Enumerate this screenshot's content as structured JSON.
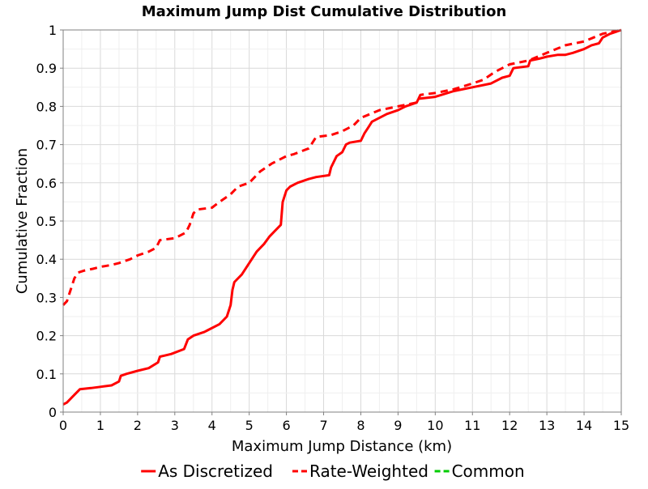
{
  "chart_data": {
    "type": "line",
    "title": "Maximum Jump Dist Cumulative Distribution",
    "xlabel": "Maximum Jump Distance (km)",
    "ylabel": "Cumulative Fraction",
    "xlim": [
      0,
      15
    ],
    "ylim": [
      0,
      1
    ],
    "x_ticks": [
      "0",
      "1",
      "2",
      "3",
      "4",
      "5",
      "6",
      "7",
      "8",
      "9",
      "10",
      "11",
      "12",
      "13",
      "14",
      "15"
    ],
    "y_ticks": [
      "0",
      "0.1",
      "0.2",
      "0.3",
      "0.4",
      "0.5",
      "0.6",
      "0.7",
      "0.8",
      "0.9",
      "1"
    ],
    "grid": true,
    "legend_position": "bottom",
    "series": [
      {
        "name": "As Discretized",
        "color": "#ff0000",
        "style": "solid",
        "x": [
          0,
          0.1,
          0.25,
          0.45,
          0.75,
          1.0,
          1.3,
          1.5,
          1.55,
          1.7,
          2.0,
          2.3,
          2.55,
          2.6,
          2.9,
          3.25,
          3.35,
          3.5,
          3.8,
          4.2,
          4.4,
          4.5,
          4.55,
          4.6,
          4.8,
          5.0,
          5.2,
          5.4,
          5.55,
          5.65,
          5.85,
          5.9,
          6.0,
          6.1,
          6.3,
          6.6,
          6.8,
          7.15,
          7.2,
          7.35,
          7.5,
          7.6,
          7.7,
          8.0,
          8.1,
          8.2,
          8.3,
          8.5,
          8.7,
          9.0,
          9.2,
          9.5,
          9.55,
          10.0,
          10.5,
          11.0,
          11.5,
          11.8,
          12.0,
          12.1,
          12.5,
          12.55,
          12.8,
          13.0,
          13.3,
          13.5,
          13.7,
          14.0,
          14.2,
          14.4,
          14.5,
          14.7,
          15.0
        ],
        "y": [
          0.02,
          0.025,
          0.04,
          0.06,
          0.063,
          0.066,
          0.07,
          0.08,
          0.095,
          0.1,
          0.108,
          0.115,
          0.13,
          0.145,
          0.152,
          0.165,
          0.19,
          0.2,
          0.21,
          0.23,
          0.25,
          0.28,
          0.32,
          0.34,
          0.36,
          0.39,
          0.42,
          0.44,
          0.46,
          0.47,
          0.49,
          0.55,
          0.58,
          0.59,
          0.6,
          0.61,
          0.615,
          0.62,
          0.64,
          0.67,
          0.68,
          0.7,
          0.705,
          0.71,
          0.73,
          0.745,
          0.76,
          0.77,
          0.78,
          0.79,
          0.8,
          0.81,
          0.82,
          0.825,
          0.84,
          0.85,
          0.86,
          0.875,
          0.88,
          0.9,
          0.905,
          0.92,
          0.925,
          0.93,
          0.935,
          0.935,
          0.94,
          0.95,
          0.96,
          0.965,
          0.98,
          0.99,
          1.0
        ]
      },
      {
        "name": "Rate-Weighted",
        "color": "#ff0000",
        "style": "dashed",
        "x": [
          0,
          0.1,
          0.2,
          0.3,
          0.4,
          0.55,
          0.8,
          1.0,
          1.3,
          1.5,
          1.8,
          2.0,
          2.3,
          2.5,
          2.6,
          3.0,
          3.3,
          3.4,
          3.5,
          3.6,
          4.0,
          4.2,
          4.5,
          4.7,
          5.0,
          5.3,
          5.6,
          5.8,
          6.0,
          6.2,
          6.6,
          6.8,
          7.2,
          7.5,
          7.8,
          8.0,
          8.5,
          9.0,
          9.5,
          9.6,
          10.0,
          10.5,
          11.0,
          11.3,
          11.6,
          12.0,
          12.5,
          13.0,
          13.5,
          14.0,
          14.5,
          15.0
        ],
        "y": [
          0.28,
          0.29,
          0.32,
          0.35,
          0.365,
          0.37,
          0.375,
          0.38,
          0.385,
          0.39,
          0.4,
          0.41,
          0.42,
          0.43,
          0.45,
          0.455,
          0.47,
          0.49,
          0.52,
          0.53,
          0.535,
          0.55,
          0.57,
          0.59,
          0.6,
          0.63,
          0.65,
          0.66,
          0.67,
          0.675,
          0.69,
          0.72,
          0.725,
          0.735,
          0.75,
          0.77,
          0.79,
          0.8,
          0.81,
          0.83,
          0.835,
          0.845,
          0.86,
          0.87,
          0.89,
          0.91,
          0.92,
          0.94,
          0.96,
          0.97,
          0.99,
          1.0
        ]
      },
      {
        "name": "Common",
        "color": "#00cc00",
        "style": "dashed",
        "x": [],
        "y": []
      }
    ]
  }
}
